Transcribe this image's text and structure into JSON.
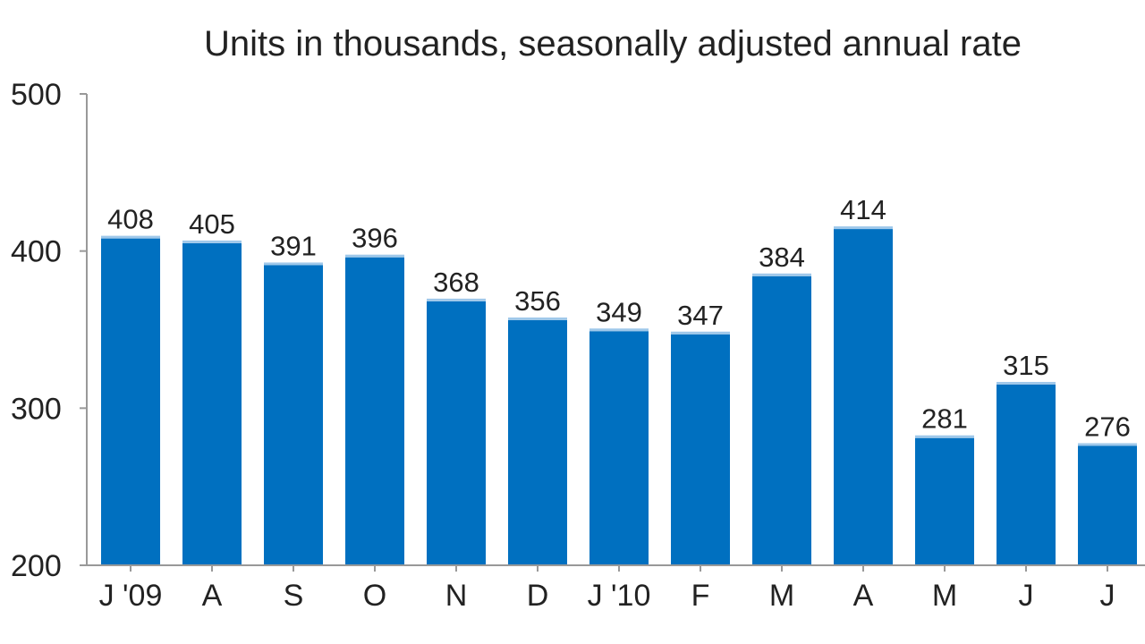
{
  "chart_data": {
    "type": "bar",
    "title": "Units in thousands, seasonally adjusted annual rate",
    "categories": [
      "J '09",
      "A",
      "S",
      "O",
      "N",
      "D",
      "J '10",
      "F",
      "M",
      "A",
      "M",
      "J",
      "J"
    ],
    "values": [
      408,
      405,
      391,
      396,
      368,
      356,
      349,
      347,
      384,
      414,
      281,
      315,
      276
    ],
    "value_labels": [
      "408",
      "405",
      "391",
      "396",
      "368",
      "356",
      "349",
      "347",
      "384",
      "414",
      "281",
      "315",
      "276"
    ],
    "ylim": [
      200,
      500
    ],
    "yticks": [
      200,
      300,
      400,
      500
    ],
    "ytick_labels": [
      "200",
      "300",
      "400",
      "500"
    ],
    "xlabel": "",
    "ylabel": "",
    "grid": false,
    "colors": {
      "bar": "#0070C0",
      "bar_highlight": "#9fc8ea",
      "axis": "#999999",
      "text": "#222222"
    }
  }
}
